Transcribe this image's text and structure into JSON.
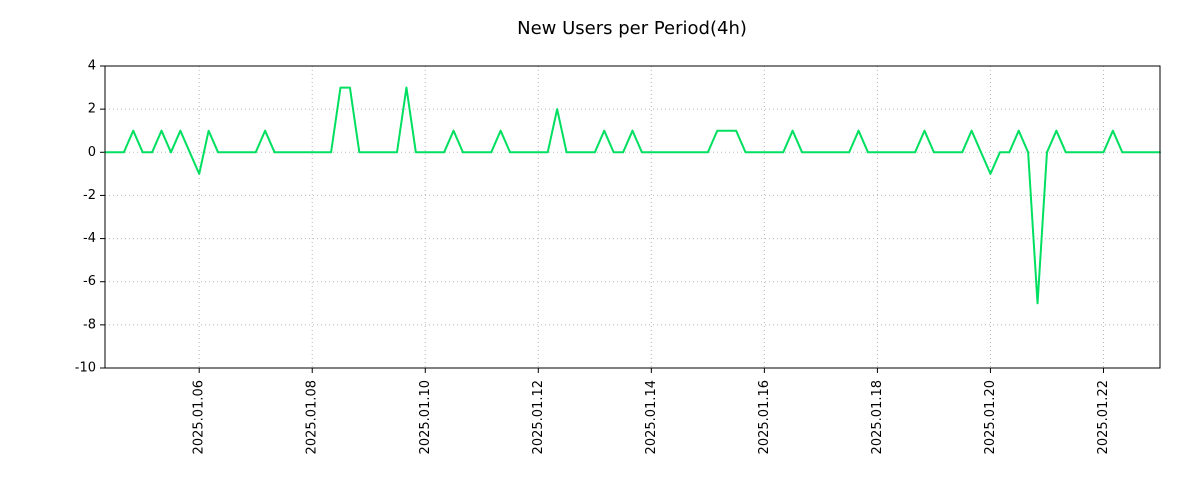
{
  "chart_data": {
    "type": "line",
    "title": "New Users per Period(4h)",
    "line_color": "#00df60",
    "grid_color": "#b8b8b8",
    "axis_color": "#000000",
    "background_color": "#ffffff",
    "ylim": [
      -10,
      4
    ],
    "yticks": [
      4,
      2,
      0,
      -2,
      -4,
      -6,
      -8,
      -10
    ],
    "x_period_hours": 4,
    "grid": "dotted",
    "legend": "none",
    "xticks": [
      {
        "index": 10,
        "label": "2025.01.06"
      },
      {
        "index": 22,
        "label": "2025.01.08"
      },
      {
        "index": 34,
        "label": "2025.01.10"
      },
      {
        "index": 46,
        "label": "2025.01.12"
      },
      {
        "index": 58,
        "label": "2025.01.14"
      },
      {
        "index": 70,
        "label": "2025.01.16"
      },
      {
        "index": 82,
        "label": "2025.01.18"
      },
      {
        "index": 94,
        "label": "2025.01.20"
      },
      {
        "index": 106,
        "label": "2025.01.22"
      }
    ],
    "values": [
      0,
      0,
      0,
      1,
      0,
      0,
      1,
      0,
      1,
      0,
      -1,
      1,
      0,
      0,
      0,
      0,
      0,
      1,
      0,
      0,
      0,
      0,
      0,
      0,
      0,
      3,
      3,
      0,
      0,
      0,
      0,
      0,
      3,
      0,
      0,
      0,
      0,
      1,
      0,
      0,
      0,
      0,
      1,
      0,
      0,
      0,
      0,
      0,
      2,
      0,
      0,
      0,
      0,
      1,
      0,
      0,
      1,
      0,
      0,
      0,
      0,
      0,
      0,
      0,
      0,
      1,
      1,
      1,
      0,
      0,
      0,
      0,
      0,
      1,
      0,
      0,
      0,
      0,
      0,
      0,
      1,
      0,
      0,
      0,
      0,
      0,
      0,
      1,
      0,
      0,
      0,
      0,
      1,
      0,
      -1,
      0,
      0,
      1,
      0,
      -7,
      0,
      1,
      0,
      0,
      0,
      0,
      0,
      1,
      0,
      0,
      0,
      0,
      0
    ]
  }
}
